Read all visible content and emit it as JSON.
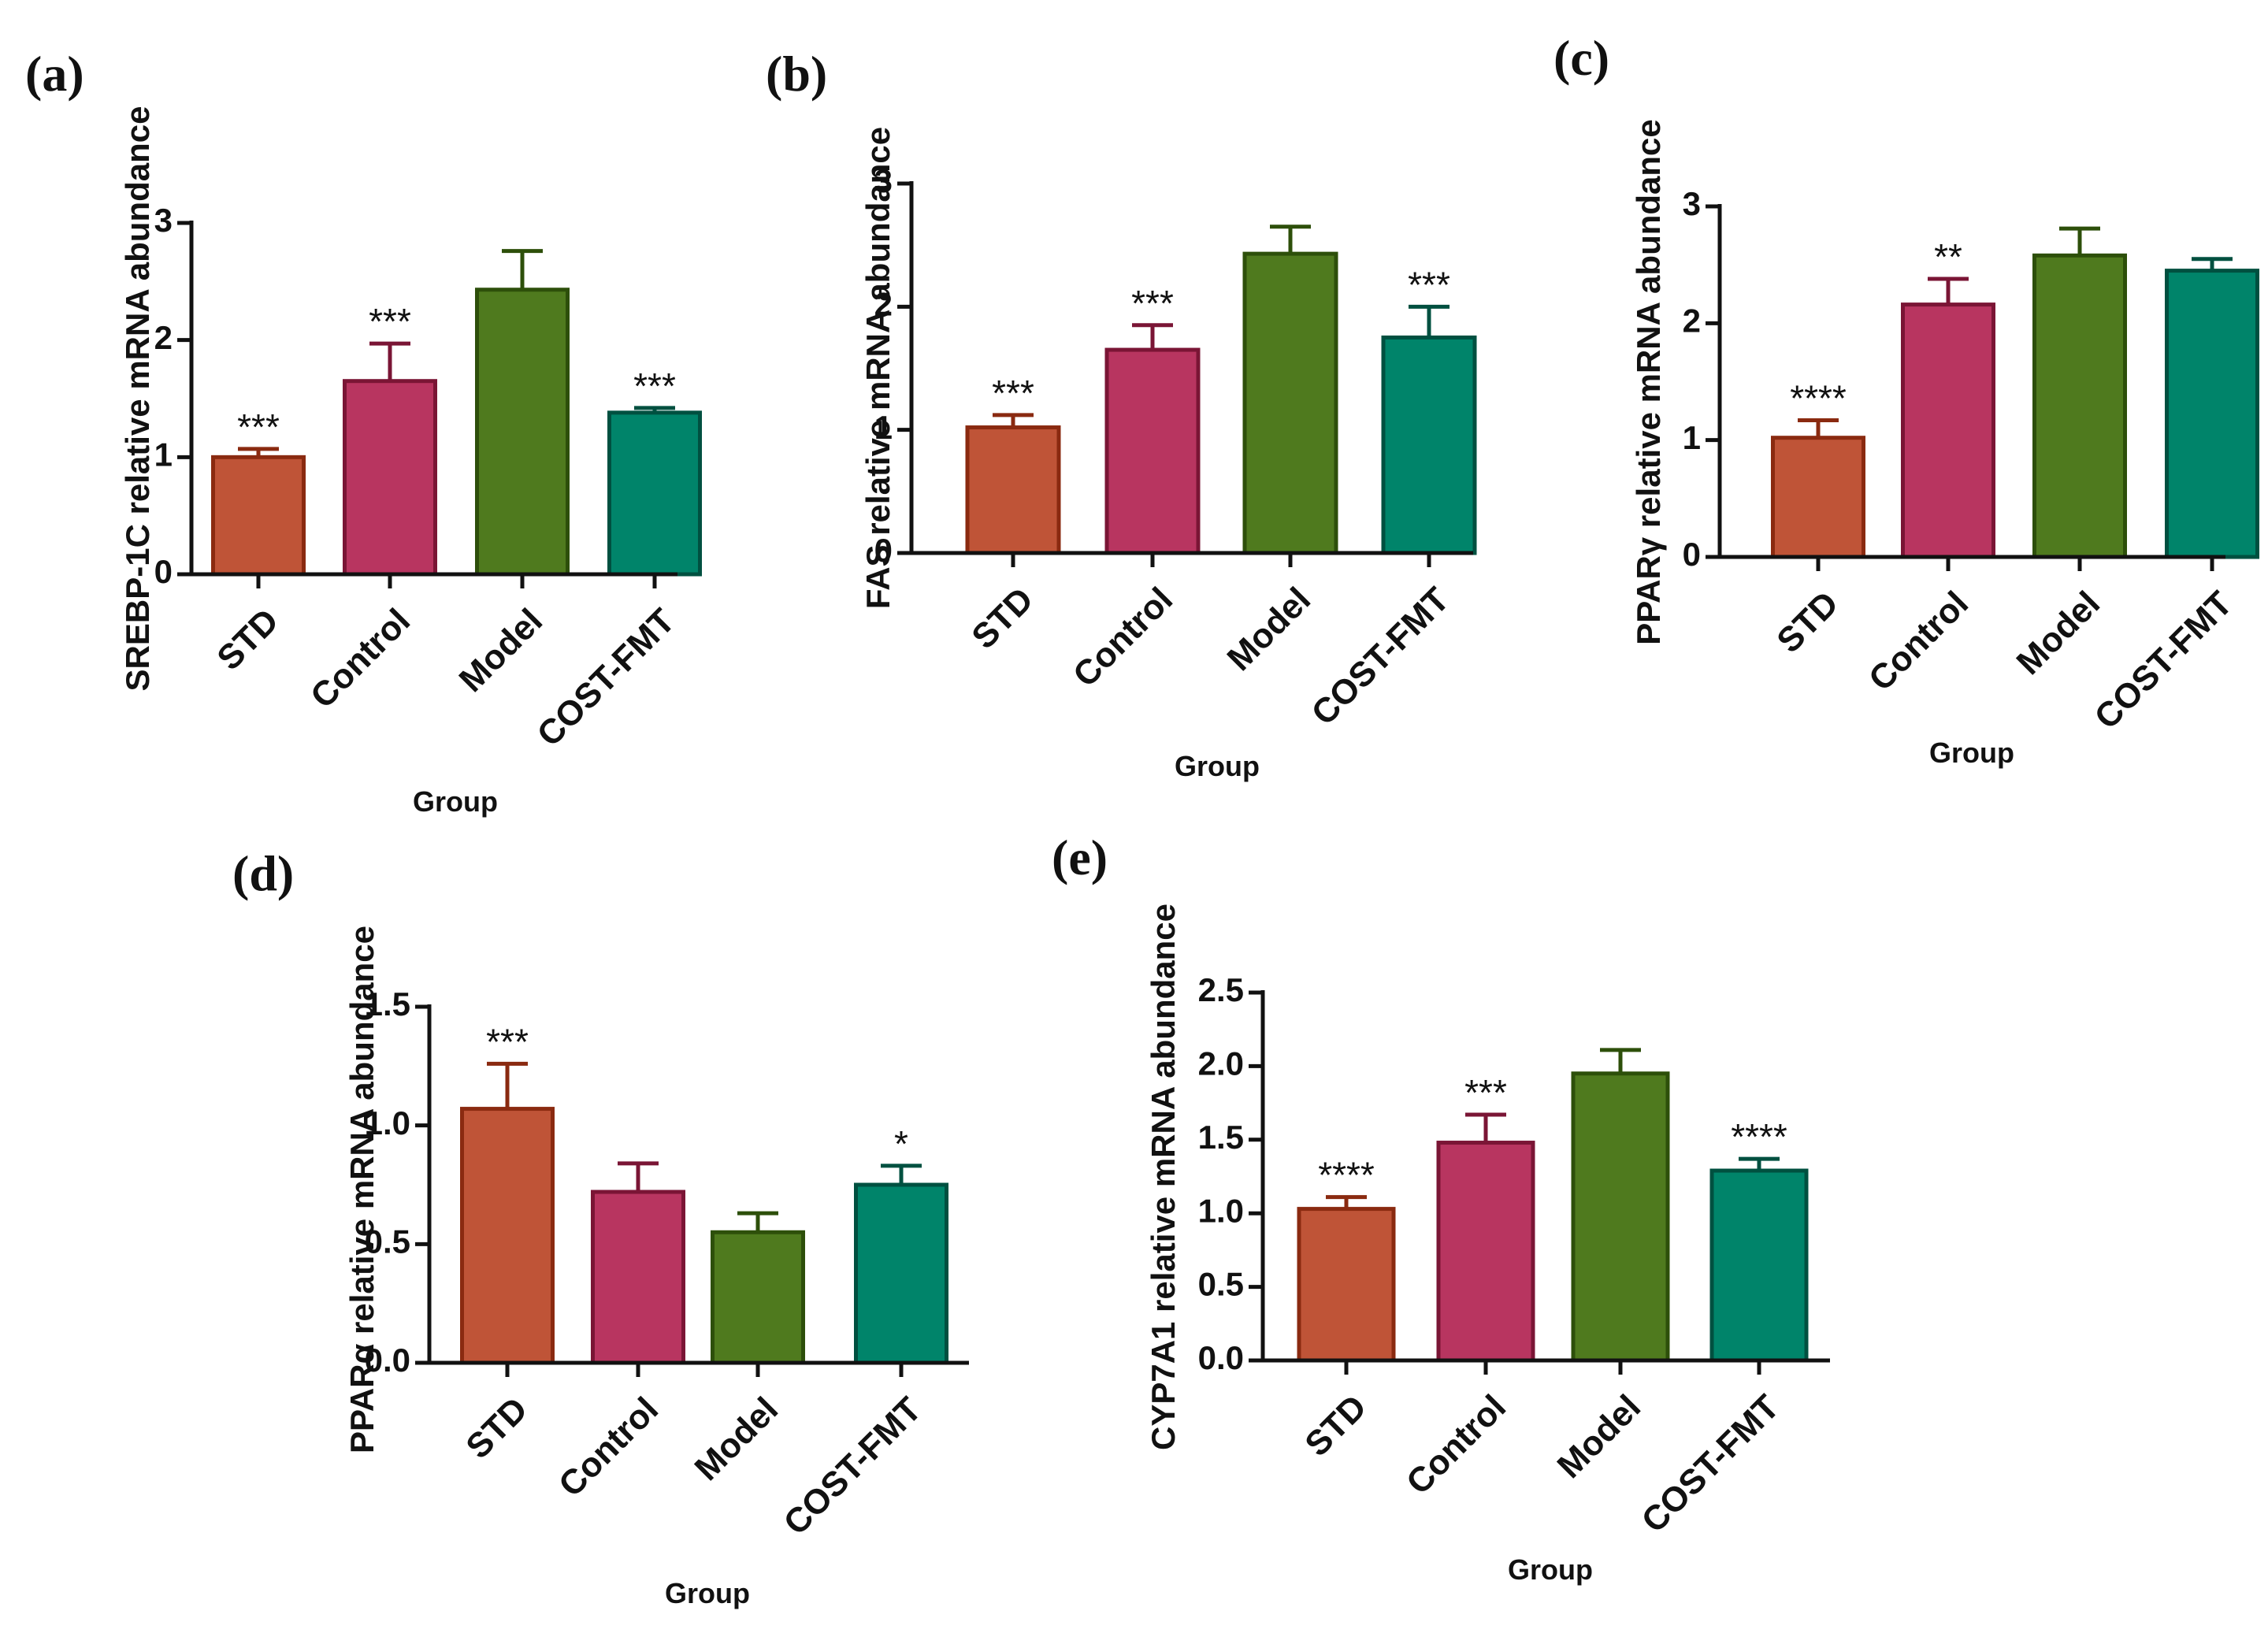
{
  "colors": {
    "STD": {
      "fill": "#bf5437",
      "stroke": "#8a2a10"
    },
    "Control": {
      "fill": "#b83560",
      "stroke": "#7a1535"
    },
    "Model": {
      "fill": "#4f7a1e",
      "stroke": "#2d4f0a"
    },
    "COST-FMT": {
      "fill": "#00846a",
      "stroke": "#005040"
    },
    "axis": "#111111"
  },
  "chart_data": [
    {
      "panel": "(a)",
      "type": "bar",
      "categories": [
        "STD",
        "Control",
        "Model",
        "COST-FMT"
      ],
      "values": [
        1.0,
        1.65,
        2.43,
        1.38
      ],
      "errors": [
        0.07,
        0.32,
        0.33,
        0.04
      ],
      "significance": [
        "***",
        "***",
        "",
        "***"
      ],
      "ylabel": "SREBP-1C relative mRNA abundance",
      "xlabel": "Group",
      "ylim": [
        0,
        3
      ],
      "yticks": [
        "0",
        "1",
        "2",
        "3"
      ]
    },
    {
      "panel": "(b)",
      "type": "bar",
      "categories": [
        "STD",
        "Control",
        "Model",
        "COST-FMT"
      ],
      "values": [
        1.02,
        1.65,
        2.43,
        1.75
      ],
      "errors": [
        0.1,
        0.2,
        0.22,
        0.25
      ],
      "significance": [
        "***",
        "***",
        "",
        "***"
      ],
      "ylabel": "FAS relative mRNA abundance",
      "xlabel": "Group",
      "ylim": [
        0,
        3
      ],
      "yticks": [
        "0",
        "1",
        "2",
        "3"
      ]
    },
    {
      "panel": "(c)",
      "type": "bar",
      "categories": [
        "STD",
        "Control",
        "Model",
        "COST-FMT"
      ],
      "values": [
        1.02,
        2.16,
        2.58,
        2.45
      ],
      "errors": [
        0.15,
        0.22,
        0.23,
        0.1
      ],
      "significance": [
        "****",
        "**",
        "",
        ""
      ],
      "ylabel": "PPARγ relative mRNA abundance",
      "xlabel": "Group",
      "ylim": [
        0,
        3
      ],
      "yticks": [
        "0",
        "1",
        "2",
        "3"
      ]
    },
    {
      "panel": "(d)",
      "type": "bar",
      "categories": [
        "STD",
        "Control",
        "Model",
        "COST-FMT"
      ],
      "values": [
        1.07,
        0.72,
        0.55,
        0.75
      ],
      "errors": [
        0.19,
        0.12,
        0.08,
        0.08
      ],
      "significance": [
        "***",
        "",
        "",
        "*"
      ],
      "ylabel": "PPARα relative mRNA abundance",
      "xlabel": "Group",
      "ylim": [
        0,
        1.5
      ],
      "yticks": [
        "0.0",
        "0.5",
        "1.0",
        "1.5"
      ]
    },
    {
      "panel": "(e)",
      "type": "bar",
      "categories": [
        "STD",
        "Control",
        "Model",
        "COST-FMT"
      ],
      "values": [
        1.03,
        1.48,
        1.95,
        1.29
      ],
      "errors": [
        0.08,
        0.19,
        0.16,
        0.08
      ],
      "significance": [
        "****",
        "***",
        "",
        "****"
      ],
      "ylabel": "CYP7A1 relative mRNA abundance",
      "xlabel": "Group",
      "ylim": [
        0,
        2.5
      ],
      "yticks": [
        "0.0",
        "0.5",
        "1.0",
        "1.5",
        "2.0",
        "2.5"
      ]
    }
  ]
}
